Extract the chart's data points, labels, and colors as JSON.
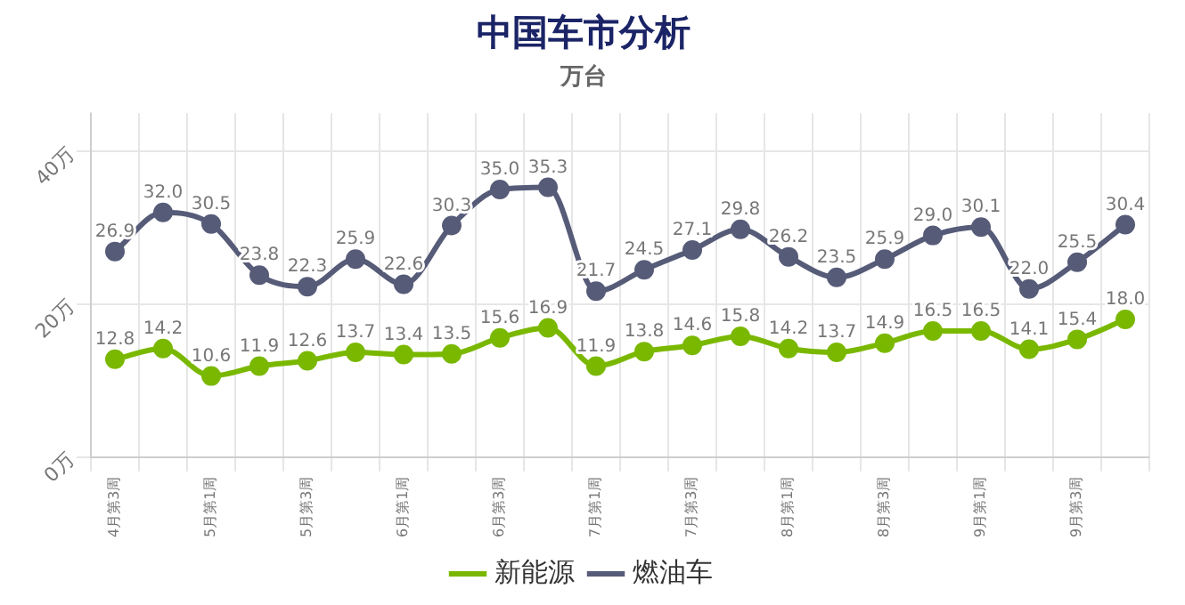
{
  "chart_data": {
    "type": "line",
    "title": "中国车市分析",
    "subtitle": "万台",
    "categories": [
      "4月第3周",
      null,
      "5月第1周",
      null,
      "5月第3周",
      null,
      "6月第1周",
      null,
      "6月第3周",
      null,
      "7月第1周",
      null,
      "7月第3周",
      null,
      "8月第1周",
      null,
      "8月第3周",
      null,
      "9月第1周",
      null,
      "9月第3周",
      null
    ],
    "series": [
      {
        "name": "新能源",
        "color": "#7ab800",
        "values": [
          12.8,
          14.2,
          10.6,
          11.9,
          12.6,
          13.7,
          13.4,
          13.5,
          15.6,
          16.9,
          11.9,
          13.8,
          14.6,
          15.8,
          14.2,
          13.7,
          14.9,
          16.5,
          16.5,
          14.1,
          15.4,
          18.0
        ],
        "value_labels": [
          "12.8",
          "14.2",
          "10.6",
          "11.9",
          "12.6",
          "13.7",
          "13.4",
          "13.5",
          "15.6",
          "16.9",
          "11.9",
          "13.8",
          "14.6",
          "15.8",
          "14.2",
          "13.7",
          "14.9",
          "16.5",
          "16.5",
          "14.1",
          "15.4",
          "18.0"
        ]
      },
      {
        "name": "燃油车",
        "color": "#565b78",
        "values": [
          26.9,
          32.0,
          30.5,
          23.8,
          22.3,
          25.9,
          22.6,
          30.3,
          35.0,
          35.3,
          21.7,
          24.5,
          27.1,
          29.8,
          26.2,
          23.5,
          25.9,
          29.0,
          30.1,
          22.0,
          25.5,
          30.4
        ],
        "value_labels": [
          "26.9",
          "32.0",
          "30.5",
          "23.8",
          "22.3",
          "25.9",
          "22.6",
          "30.3",
          "35.0",
          "35.3",
          "21.7",
          "24.5",
          "27.1",
          "29.8",
          "26.2",
          "23.5",
          "25.9",
          "29.0",
          "30.1",
          "22.0",
          "25.5",
          "30.4"
        ]
      }
    ],
    "ylim": [
      0,
      45
    ],
    "yticks": [
      {
        "value": 0,
        "label": "0万"
      },
      {
        "value": 20,
        "label": "20万"
      },
      {
        "value": 40,
        "label": "40万"
      }
    ],
    "grid": true,
    "legend": "bottom",
    "marker": "circle"
  }
}
